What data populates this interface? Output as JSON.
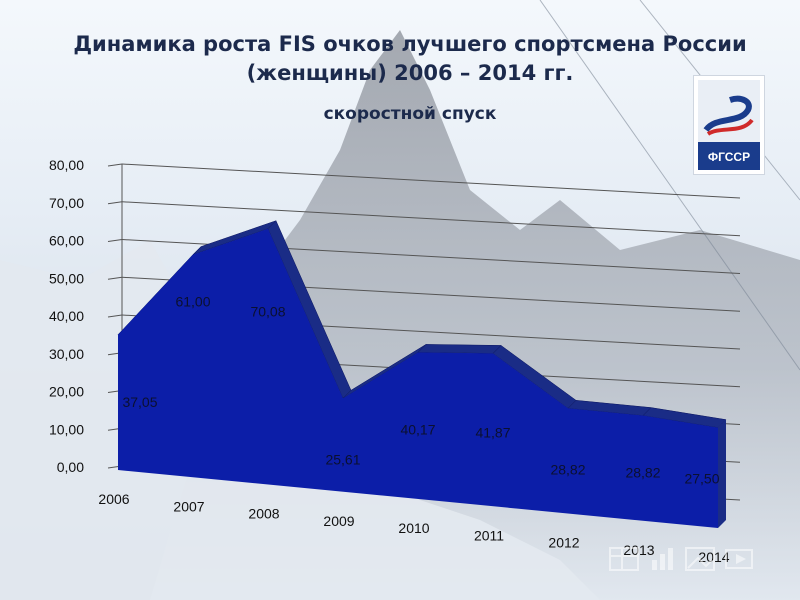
{
  "header": {
    "title_line1": "Динамика  роста FIS очков лучшего спортсмена России",
    "title_line2": "(женщины) 2006 – 2014 гг.",
    "subtitle": "скоростной спуск"
  },
  "logo": {
    "text": "ФГССР",
    "icon": "fgssr-logo"
  },
  "colors": {
    "area_front": "#0c1ea8",
    "area_top": "#1a2c86",
    "grid": "#555555"
  },
  "chart_data": {
    "type": "area",
    "title": "",
    "xlabel": "",
    "ylabel": "",
    "ylim": [
      0,
      80
    ],
    "grid": true,
    "three_d": true,
    "categories": [
      "2006",
      "2007",
      "2008",
      "2009",
      "2010",
      "2011",
      "2012",
      "2013",
      "2014"
    ],
    "values": [
      37.05,
      61.0,
      70.08,
      25.61,
      40.17,
      41.87,
      28.82,
      28.82,
      27.5
    ],
    "data_labels": [
      "37,05",
      "61,00",
      "70,08",
      "25,61",
      "40,17",
      "41,87",
      "28,82",
      "28,82",
      "27,50"
    ],
    "yticks": [
      "0,00",
      "10,00",
      "20,00",
      "30,00",
      "40,00",
      "50,00",
      "60,00",
      "70,00",
      "80,00"
    ]
  }
}
